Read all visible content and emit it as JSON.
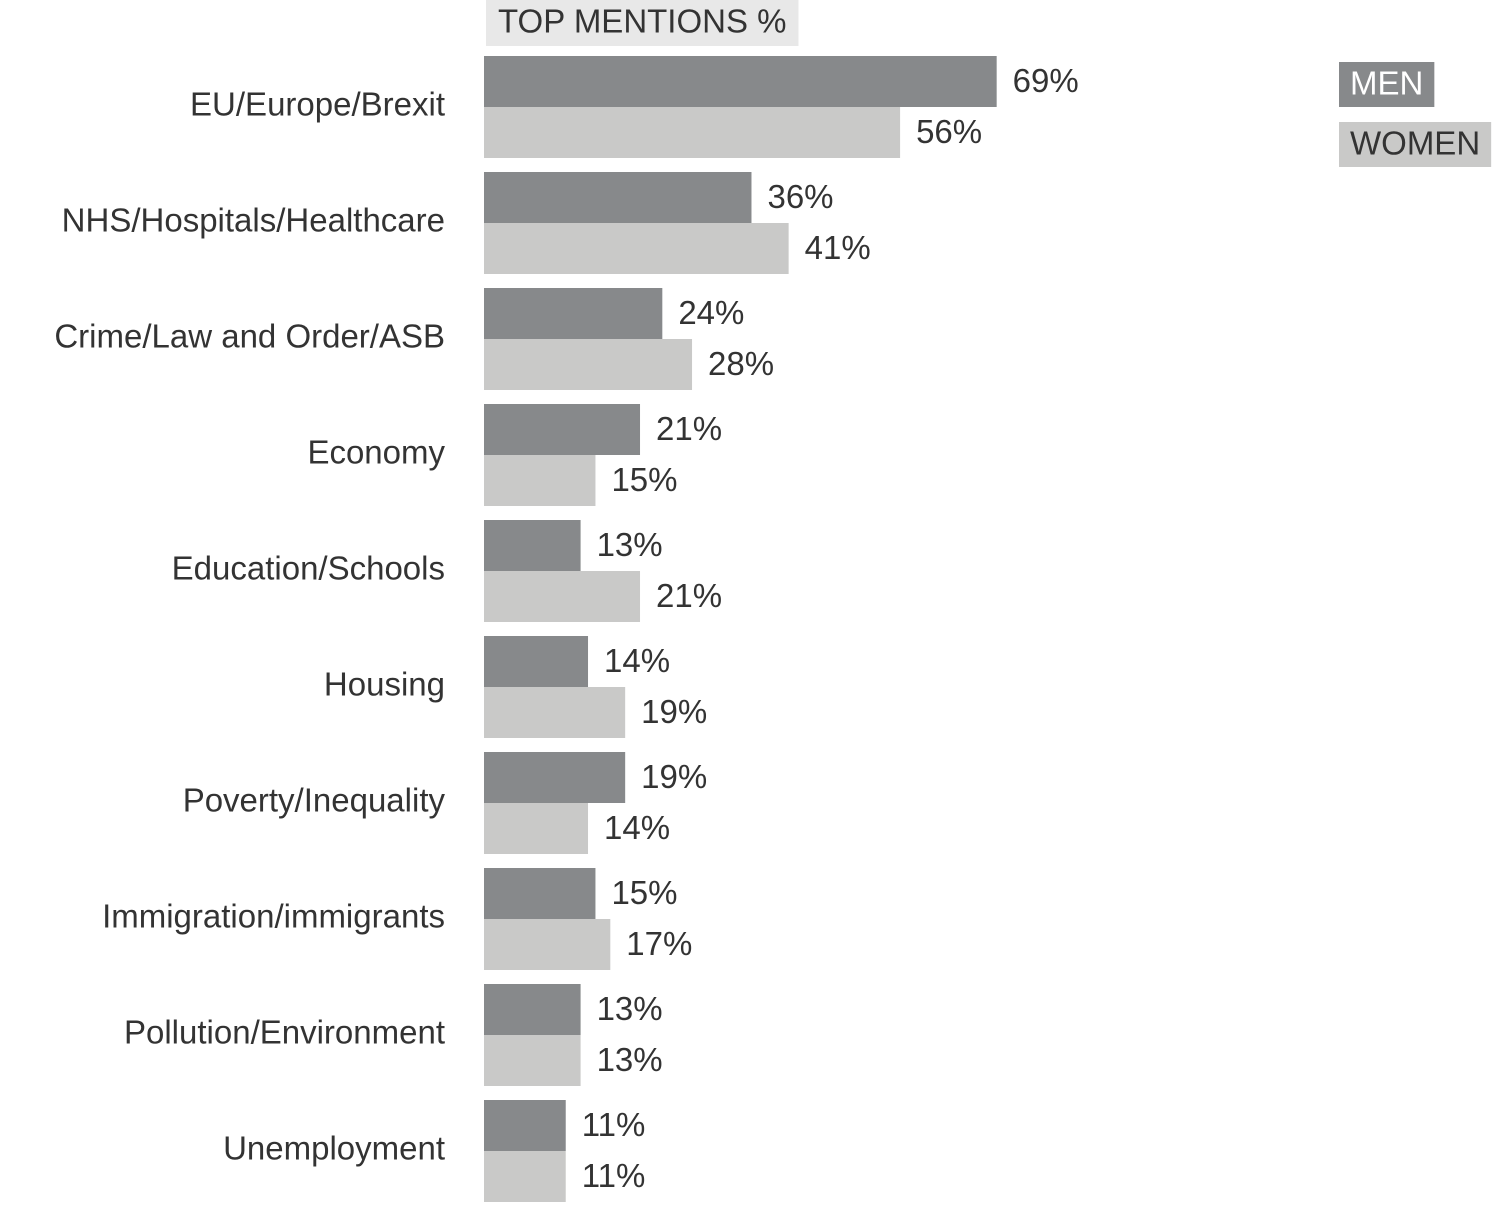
{
  "chart_data": {
    "type": "bar",
    "orientation": "horizontal",
    "title": "TOP MENTIONS %",
    "categories": [
      "EU/Europe/Brexit",
      "NHS/Hospitals/Healthcare",
      "Crime/Law and Order/ASB",
      "Economy",
      "Education/Schools",
      "Housing",
      "Poverty/Inequality",
      "Immigration/immigrants",
      "Pollution/Environment",
      "Unemployment"
    ],
    "series": [
      {
        "name": "MEN",
        "color": "#87898b",
        "values": [
          69,
          36,
          24,
          21,
          13,
          14,
          19,
          15,
          13,
          11
        ],
        "value_labels": [
          "69%",
          "36%",
          "24%",
          "21%",
          "13%",
          "14%",
          "19%",
          "15%",
          "13%",
          "11%"
        ]
      },
      {
        "name": "WOMEN",
        "color": "#c9c9c8",
        "values": [
          56,
          41,
          28,
          15,
          21,
          19,
          14,
          17,
          13,
          11
        ],
        "value_labels": [
          "56%",
          "41%",
          "28%",
          "15%",
          "21%",
          "19%",
          "14%",
          "17%",
          "13%",
          "11%"
        ]
      }
    ],
    "legend": "top-right"
  }
}
